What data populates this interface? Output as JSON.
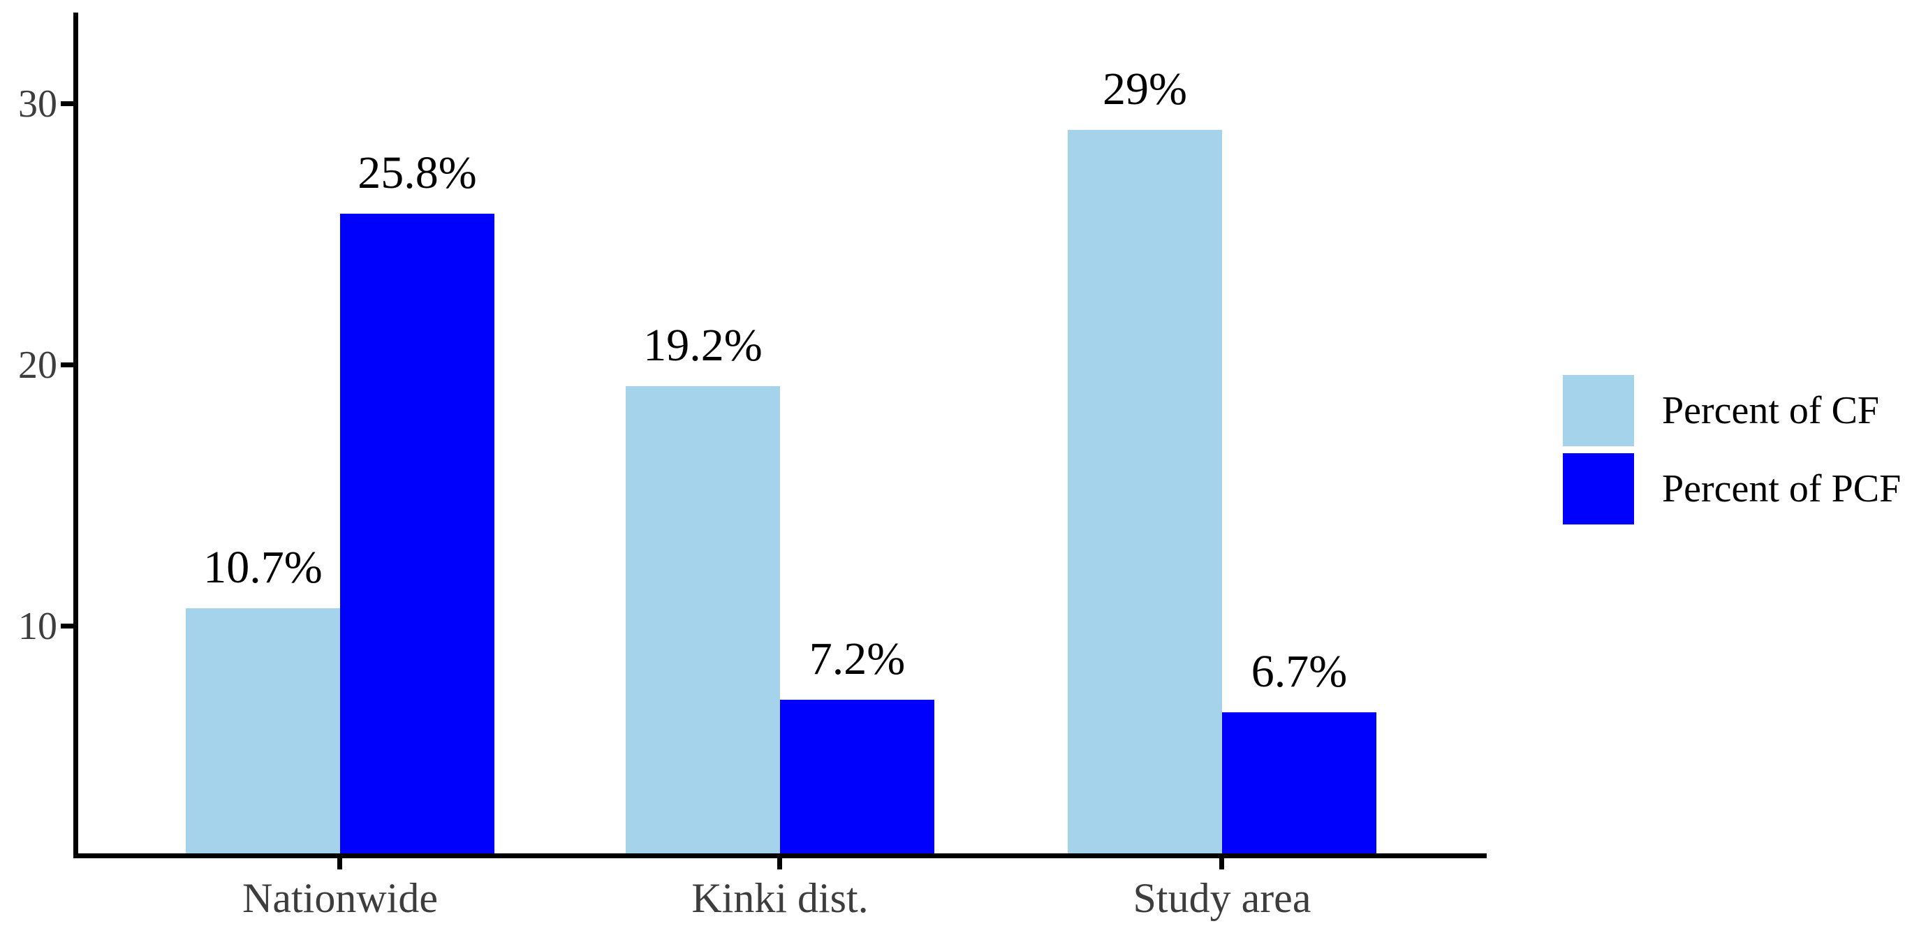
{
  "chart_data": {
    "type": "bar",
    "title": "",
    "xlabel": "",
    "ylabel": "",
    "categories": [
      "Nationwide",
      "Kinki dist.",
      "Study area"
    ],
    "series": [
      {
        "name": "Percent of CF",
        "color": "#A6D3EC",
        "values": [
          10.7,
          19.2,
          29.0
        ],
        "value_labels": [
          "10.7%",
          "19.2%",
          "29%"
        ]
      },
      {
        "name": "Percent of PCF",
        "color": "#0000FD",
        "values": [
          25.8,
          7.2,
          6.7
        ],
        "value_labels": [
          "25.8%",
          "7.2%",
          "6.7%"
        ]
      }
    ],
    "yticks": [
      10,
      20,
      30
    ],
    "ytick_labels": [
      "10",
      "20",
      "30"
    ],
    "ylim": [
      1.3,
      33.5
    ],
    "grid": false,
    "legend_position": "right-center",
    "colors": {
      "axis": "#000000",
      "tick_label": "#3d3d3d",
      "value_label": "#000000",
      "background": "#ffffff"
    }
  }
}
